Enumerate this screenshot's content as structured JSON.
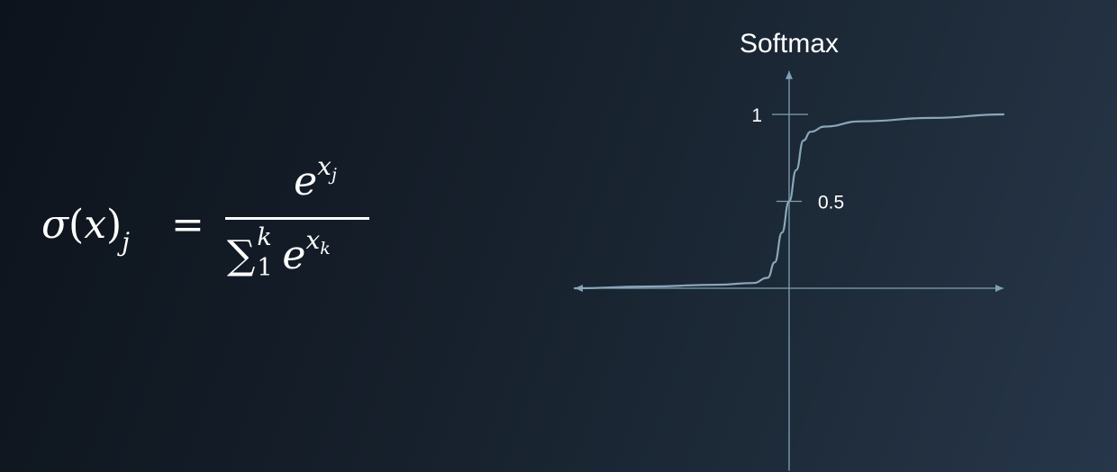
{
  "formula": {
    "lhs_sigma": "σ",
    "lhs_open": "(",
    "lhs_var": "x",
    "lhs_close": ")",
    "lhs_sub": "j",
    "equals": "=",
    "num_base": "e",
    "num_exp": "x",
    "num_exp_sub": "j",
    "den_sum": "∑",
    "den_upper": "k",
    "den_lower": "1",
    "den_base": "e",
    "den_exp": "x",
    "den_exp_sub": "k"
  },
  "chart_data": {
    "type": "line",
    "title": "Softmax",
    "xlabel": "",
    "ylabel": "",
    "y_ticks": [
      {
        "value": 1,
        "label": "1"
      },
      {
        "value": 0.5,
        "label": "0.5"
      }
    ],
    "series": [
      {
        "x": [
          -6,
          -4,
          -2,
          -1,
          -0.6,
          -0.4,
          -0.2,
          0,
          0.2,
          0.4,
          0.6,
          1,
          2,
          4,
          6
        ],
        "values": [
          0.0,
          0.01,
          0.02,
          0.03,
          0.06,
          0.15,
          0.32,
          0.5,
          0.68,
          0.85,
          0.9,
          0.93,
          0.96,
          0.98,
          1.0
        ]
      }
    ],
    "xlim": [
      -6,
      6
    ],
    "ylim": [
      -1.05,
      1.25
    ],
    "colors": {
      "axis": "#7fa1b6",
      "curve": "#8aa7b8",
      "title": "#ffffff",
      "tick_label": "#ffffff"
    }
  }
}
